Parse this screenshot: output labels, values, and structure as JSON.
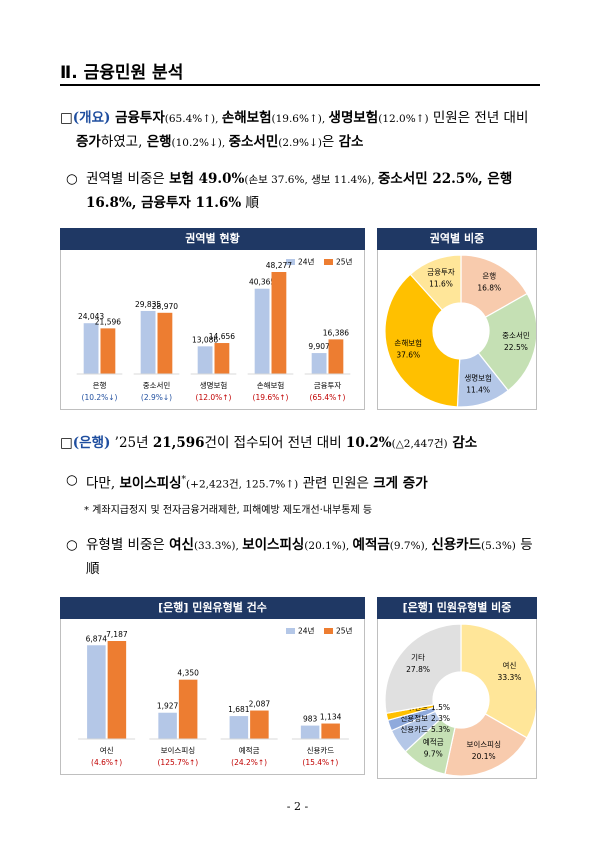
{
  "header": {
    "title": "Ⅱ. 금융민원 분석"
  },
  "paragraphs": [
    {
      "runs": [
        "□",
        "(개요)",
        " 금융투자",
        "(65.4%↑), ",
        "손해보험",
        "(19.6%↑), ",
        "생명보험",
        "(12.0%↑)",
        " 민원은 전년 대비 ",
        "증가",
        "하였고, ",
        "은행",
        "(10.2%↓), ",
        "중소서민",
        "(2.9%↓)",
        "은 ",
        "감소"
      ]
    },
    {
      "bullet": "○",
      "runs": [
        "권역별 비중은 ",
        "보험 49.0%",
        "(손보 37.6%, 생보 11.4%), ",
        "중소서민 22.5%, 은행 16.8%, 금융투자 11.6%",
        " 順"
      ]
    },
    {
      "runs": [
        "□",
        "(은행)",
        " ’25년 ",
        "21,596",
        "건이 접수되어 전년 대비 ",
        "10.2%",
        "(△2,447건)",
        " 감소"
      ]
    },
    {
      "bullet": "○",
      "runs": [
        "다만, ",
        "보이스피싱",
        "*",
        "(+2,423건, 125.7%↑)",
        " 관련 민원은 ",
        "크게 증가"
      ]
    },
    {
      "bullet": "○",
      "runs": [
        "유형별 비중은 ",
        "여신",
        "(33.3%), ",
        "보이스피싱",
        "(20.1%), ",
        "예적금",
        "(9.7%), ",
        "신용카드",
        "(5.3%)",
        " 등 順"
      ]
    }
  ],
  "footnote": "* 계좌지급정지 및 전자금융거래제한, 피해예방 제도개선·내부통제 등",
  "page_number": "- 2 -",
  "chart_data": [
    {
      "type": "bar",
      "title": "권역별 현황",
      "categories": [
        "은행",
        "중소서민",
        "생명보험",
        "손해보험",
        "금융투자"
      ],
      "notes": [
        "(10.2%↓)",
        "(2.9%↓)",
        "(12.0%↑)",
        "(19.6%↑)",
        "(65.4%↑)"
      ],
      "note_colors": [
        "#1f4e9f",
        "#1f4e9f",
        "#c00000",
        "#c00000",
        "#c00000"
      ],
      "series": [
        {
          "name": "24년",
          "color": "#b4c7e7",
          "values": [
            24043,
            29835,
            13086,
            40365,
            9907
          ],
          "value_labels": [
            "24,043",
            "29,835",
            "13,086",
            "40,365",
            "9,907"
          ]
        },
        {
          "name": "25년",
          "color": "#ed7d31",
          "values": [
            21596,
            28970,
            14656,
            48277,
            16386
          ],
          "value_labels": [
            "21,596",
            "28,970",
            "14,656",
            "48,277",
            "16,386"
          ]
        }
      ]
    },
    {
      "type": "pie",
      "title": "권역별 비중",
      "categories": [
        "은행",
        "중소서민",
        "생명보험",
        "손해보험",
        "금융투자"
      ],
      "values": [
        16.8,
        22.5,
        11.4,
        37.6,
        11.6
      ],
      "value_labels": [
        "16.8%",
        "22.5%",
        "11.4%",
        "37.6%",
        "11.6%"
      ],
      "colors": [
        "#f8cbad",
        "#c5e0b4",
        "#b4c7e7",
        "#ffc000",
        "#ffe699"
      ]
    },
    {
      "type": "bar",
      "title": "[은행] 민원유형별 건수",
      "categories": [
        "여신",
        "보이스피싱",
        "예적금",
        "신용카드"
      ],
      "notes": [
        "(4.6%↑)",
        "(125.7%↑)",
        "(24.2%↑)",
        "(15.4%↑)"
      ],
      "note_colors": [
        "#c00000",
        "#c00000",
        "#c00000",
        "#c00000"
      ],
      "series": [
        {
          "name": "24년",
          "color": "#b4c7e7",
          "values": [
            6874,
            1927,
            1681,
            983
          ],
          "value_labels": [
            "6,874",
            "1,927",
            "1,681",
            "983"
          ]
        },
        {
          "name": "25년",
          "color": "#ed7d31",
          "values": [
            7187,
            4350,
            2087,
            1134
          ],
          "value_labels": [
            "7,187",
            "4,350",
            "2,087",
            "1,134"
          ]
        }
      ]
    },
    {
      "type": "pie",
      "title": "[은행] 민원유형별 비중",
      "categories": [
        "여신",
        "보이스피싱",
        "예적금",
        "신용카드",
        "신용정보",
        "방카.펀드",
        "기타"
      ],
      "values": [
        33.3,
        20.1,
        9.7,
        5.3,
        2.3,
        1.5,
        27.8
      ],
      "value_labels": [
        "33.3%",
        "20.1%",
        "9.7%",
        "5.3%",
        "2.3%",
        "1.5%",
        "27.8%"
      ],
      "colors": [
        "#ffe699",
        "#f8cbad",
        "#c5e0b4",
        "#b4c7e7",
        "#8faadc",
        "#ffc000",
        "#e0e0e0"
      ]
    }
  ]
}
